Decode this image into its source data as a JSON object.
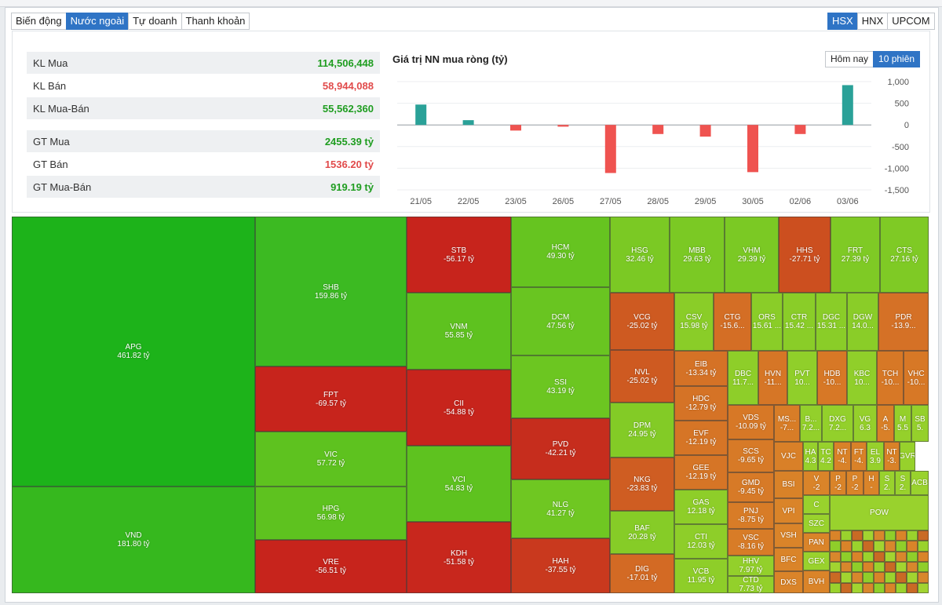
{
  "market_tabs": [
    {
      "label": "Biến động",
      "active": false
    },
    {
      "label": "Nước ngoài",
      "active": true
    },
    {
      "label": "Tự doanh",
      "active": false
    },
    {
      "label": "Thanh khoản",
      "active": false
    }
  ],
  "exchange_tabs": [
    {
      "label": "HSX",
      "active": true
    },
    {
      "label": "HNX",
      "active": false
    },
    {
      "label": "UPCOM",
      "active": false
    }
  ],
  "stats": {
    "kl_mua": {
      "label": "KL Mua",
      "value": "114,506,448"
    },
    "kl_ban": {
      "label": "KL Bán",
      "value": "58,944,088"
    },
    "kl_mua_ban": {
      "label": "KL Mua-Bán",
      "value": "55,562,360"
    },
    "gt_mua": {
      "label": "GT Mua",
      "value": "2455.39 tỷ"
    },
    "gt_ban": {
      "label": "GT Bán",
      "value": "1536.20 tỷ"
    },
    "gt_mua_ban": {
      "label": "GT Mua-Bán",
      "value": "919.19 tỷ"
    }
  },
  "chart_title": "Giá trị NN mua ròng (tỷ)",
  "period_tabs": [
    {
      "label": "Hôm nay",
      "active": false
    },
    {
      "label": "10 phiên",
      "active": true
    }
  ],
  "colors": {
    "positive": "#2aa198",
    "negative": "#ef5350",
    "accent": "#2f74c5"
  },
  "chart_data": {
    "type": "bar",
    "title": "Giá trị NN mua ròng (tỷ)",
    "categories": [
      "21/05",
      "22/05",
      "23/05",
      "26/05",
      "27/05",
      "28/05",
      "29/05",
      "30/05",
      "02/06",
      "03/06"
    ],
    "values": [
      470,
      110,
      -130,
      -40,
      -1110,
      -210,
      -270,
      -1090,
      -210,
      919
    ],
    "ylim": [
      -1500,
      1000
    ],
    "yticks": [
      1000,
      500,
      0,
      -500,
      -1000,
      -1500
    ],
    "ytick_labels": [
      "1,000",
      "500",
      "0",
      "-500",
      "-1,000",
      "-1,500"
    ],
    "grid": true,
    "legend": "none"
  },
  "treemap": [
    {
      "t": "APG",
      "v": "461.82 tỷ",
      "color": "#1db31a"
    },
    {
      "t": "VND",
      "v": "181.80 tỷ",
      "color": "#36b81e"
    },
    {
      "t": "SHB",
      "v": "159.86 tỷ",
      "color": "#3cba22"
    },
    {
      "t": "FPT",
      "v": "-69.57 tỷ",
      "color": "#c7241c"
    },
    {
      "t": "VIC",
      "v": "57.72 tỷ",
      "color": "#5ec21f"
    },
    {
      "t": "HPG",
      "v": "56.98 tỷ",
      "color": "#5ec21f"
    },
    {
      "t": "VRE",
      "v": "-56.51 tỷ",
      "color": "#c7241c"
    },
    {
      "t": "STB",
      "v": "-56.17 tỷ",
      "color": "#c7241c"
    },
    {
      "t": "VNM",
      "v": "55.85 tỷ",
      "color": "#5ec21f"
    },
    {
      "t": "CII",
      "v": "-54.88 tỷ",
      "color": "#c7241c"
    },
    {
      "t": "VCI",
      "v": "54.83 tỷ",
      "color": "#5ec21f"
    },
    {
      "t": "KDH",
      "v": "-51.58 tỷ",
      "color": "#c8271d"
    },
    {
      "t": "HCM",
      "v": "49.30 tỷ",
      "color": "#66c420"
    },
    {
      "t": "DCM",
      "v": "47.56 tỷ",
      "color": "#69c521"
    },
    {
      "t": "SSI",
      "v": "43.19 tỷ",
      "color": "#6cc621"
    },
    {
      "t": "PVD",
      "v": "-42.21 tỷ",
      "color": "#c62d1d"
    },
    {
      "t": "NLG",
      "v": "41.27 tỷ",
      "color": "#6fc722"
    },
    {
      "t": "HAH",
      "v": "-37.55 tỷ",
      "color": "#c9391e"
    },
    {
      "t": "HSG",
      "v": "32.46 tỷ",
      "color": "#7bc924"
    },
    {
      "t": "MBB",
      "v": "29.63 tỷ",
      "color": "#7bc924"
    },
    {
      "t": "VHM",
      "v": "29.39 tỷ",
      "color": "#7bc924"
    },
    {
      "t": "HHS",
      "v": "-27.71 tỷ",
      "color": "#cc4f1f"
    },
    {
      "t": "FRT",
      "v": "27.39 tỷ",
      "color": "#7fca25"
    },
    {
      "t": "CTS",
      "v": "27.16 tỷ",
      "color": "#7fca25"
    },
    {
      "t": "VCG",
      "v": "-25.02 tỷ",
      "color": "#ce5a21"
    },
    {
      "t": "NVL",
      "v": "-25.02 tỷ",
      "color": "#ce5a21"
    },
    {
      "t": "DPM",
      "v": "24.95 tỷ",
      "color": "#83cb26"
    },
    {
      "t": "NKG",
      "v": "-23.83 tỷ",
      "color": "#cf5d22"
    },
    {
      "t": "BAF",
      "v": "20.28 tỷ",
      "color": "#86cc27"
    },
    {
      "t": "DIG",
      "v": "-17.01 tỷ",
      "color": "#d36a24"
    },
    {
      "t": "CSV",
      "v": "15.98 tỷ",
      "color": "#8acd28"
    },
    {
      "t": "CTG",
      "v": "-15.6...",
      "color": "#d46e25"
    },
    {
      "t": "ORS",
      "v": "15.61 ...",
      "color": "#8acd28"
    },
    {
      "t": "CTR",
      "v": "15.42 ...",
      "color": "#8acd28"
    },
    {
      "t": "DGC",
      "v": "15.31 ...",
      "color": "#8acd28"
    },
    {
      "t": "DGW",
      "v": "14.0...",
      "color": "#8acd28"
    },
    {
      "t": "PDR",
      "v": "-13.9...",
      "color": "#d57126"
    },
    {
      "t": "EIB",
      "v": "-13.34 tỷ",
      "color": "#d57226"
    },
    {
      "t": "HDC",
      "v": "-12.79 tỷ",
      "color": "#d57326"
    },
    {
      "t": "EVF",
      "v": "-12.19 tỷ",
      "color": "#d67526"
    },
    {
      "t": "GEE",
      "v": "-12.19 tỷ",
      "color": "#d67526"
    },
    {
      "t": "GAS",
      "v": "12.18 tỷ",
      "color": "#8ece29"
    },
    {
      "t": "CTI",
      "v": "12.03 tỷ",
      "color": "#8ece29"
    },
    {
      "t": "VCB",
      "v": "11.95 tỷ",
      "color": "#8ece29"
    },
    {
      "t": "DBC",
      "v": "11.7...",
      "color": "#8ece29"
    },
    {
      "t": "HVN",
      "v": "-11...",
      "color": "#d67626"
    },
    {
      "t": "PVT",
      "v": "10...",
      "color": "#90cf2a"
    },
    {
      "t": "HDB",
      "v": "-10...",
      "color": "#d77826"
    },
    {
      "t": "KBC",
      "v": "10...",
      "color": "#90cf2a"
    },
    {
      "t": "TCH",
      "v": "-10...",
      "color": "#d77826"
    },
    {
      "t": "VHC",
      "v": "-10...",
      "color": "#d77826"
    },
    {
      "t": "VDS",
      "v": "-10.09 tỷ",
      "color": "#d77826"
    },
    {
      "t": "SCS",
      "v": "-9.65 tỷ",
      "color": "#d77a27"
    },
    {
      "t": "GMD",
      "v": "-9.45 tỷ",
      "color": "#d77a27"
    },
    {
      "t": "PNJ",
      "v": "-8.75 tỷ",
      "color": "#d87c27"
    },
    {
      "t": "VSC",
      "v": "-8.16 tỷ",
      "color": "#d87c27"
    },
    {
      "t": "HHV",
      "v": "7.97 tỷ",
      "color": "#93d02b"
    },
    {
      "t": "CTD",
      "v": "7.73 tỷ",
      "color": "#93d02b"
    },
    {
      "t": "MS...",
      "v": "-7...",
      "color": "#d87d27"
    },
    {
      "t": "B...",
      "v": "7.2...",
      "color": "#93d02b"
    },
    {
      "t": "DXG",
      "v": "7.2...",
      "color": "#93d02b"
    },
    {
      "t": "VG",
      "v": "6.3",
      "color": "#95d02b"
    },
    {
      "t": "A",
      "v": "-5.",
      "color": "#d98028"
    },
    {
      "t": "M",
      "v": "5.5",
      "color": "#95d02b"
    },
    {
      "t": "SB",
      "v": "5.",
      "color": "#95d02b"
    },
    {
      "t": "VJC",
      "v": "",
      "color": "#d98028"
    },
    {
      "t": "HA",
      "v": "4.3",
      "color": "#97d12c"
    },
    {
      "t": "TC",
      "v": "4.2",
      "color": "#97d12c"
    },
    {
      "t": "NT",
      "v": "-4.",
      "color": "#d98228"
    },
    {
      "t": "FT",
      "v": "-4.",
      "color": "#d98228"
    },
    {
      "t": "EL",
      "v": "3.9",
      "color": "#97d12c"
    },
    {
      "t": "NT",
      "v": "-3.",
      "color": "#d98228"
    },
    {
      "t": "GVR",
      "v": "",
      "color": "#97d12c"
    },
    {
      "t": "BSI",
      "v": "",
      "color": "#d98228"
    },
    {
      "t": "V",
      "v": "-2",
      "color": "#da8429"
    },
    {
      "t": "P",
      "v": "-2",
      "color": "#da8429"
    },
    {
      "t": "P",
      "v": "-2",
      "color": "#da8429"
    },
    {
      "t": "H",
      "v": "-",
      "color": "#da8429"
    },
    {
      "t": "S",
      "v": "2.",
      "color": "#99d22d"
    },
    {
      "t": "S",
      "v": "2.",
      "color": "#99d22d"
    },
    {
      "t": "ACB",
      "v": "",
      "color": "#99d22d"
    },
    {
      "t": "VPI",
      "v": "",
      "color": "#da8429"
    },
    {
      "t": "C",
      "v": "",
      "color": "#99d22d"
    },
    {
      "t": "POW",
      "v": "",
      "color": "#99d22d"
    },
    {
      "t": "VSH",
      "v": "",
      "color": "#da8429"
    },
    {
      "t": "SZC",
      "v": "",
      "color": "#99d22d"
    },
    {
      "t": "BFC",
      "v": "",
      "color": "#da8429"
    },
    {
      "t": "PAN",
      "v": "",
      "color": "#da8429"
    },
    {
      "t": "GEX",
      "v": "",
      "color": "#99d22d"
    },
    {
      "t": "DXS",
      "v": "",
      "color": "#da8429"
    },
    {
      "t": "BVH",
      "v": "",
      "color": "#da8429"
    }
  ]
}
